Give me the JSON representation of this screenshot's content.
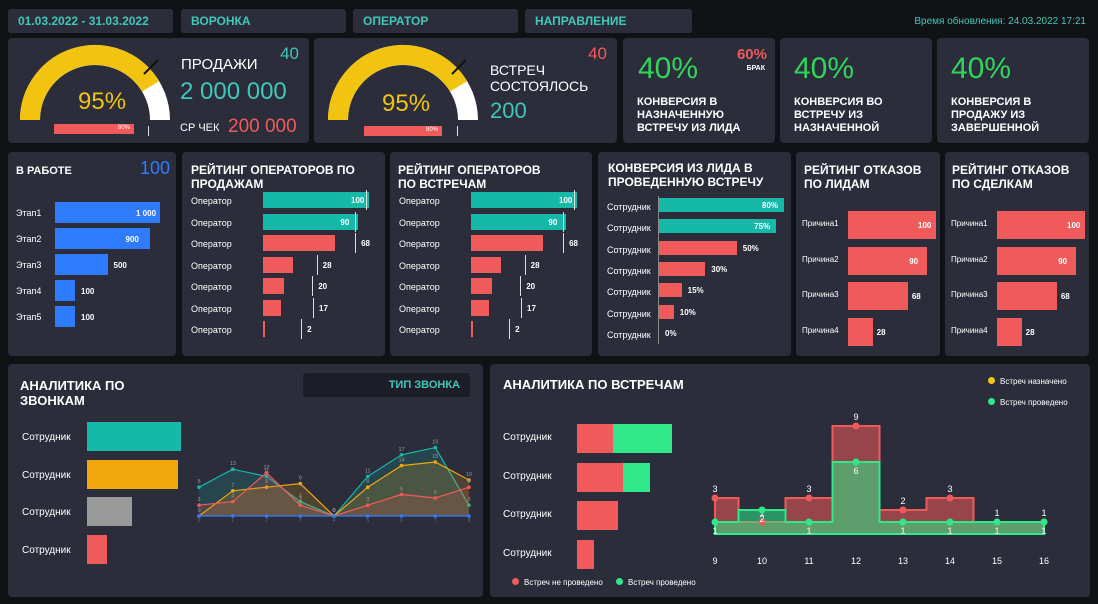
{
  "filters": {
    "date_range": "01.03.2022 - 31.03.2022",
    "funnel": "ВОРОНКА",
    "operator": "ОПЕРАТОР",
    "direction": "НАПРАВЛЕНИЕ",
    "update_time": "Время обновления: 24.03.2022 17:21"
  },
  "kpi_sales": {
    "percent": "95%",
    "title": "ПРОДАЖИ",
    "value": "2 000 000",
    "count": "40",
    "avg_label": "СР ЧЕК",
    "avg_value": "200 000",
    "bar_label": "80%",
    "level": 0.95
  },
  "kpi_meetings": {
    "percent": "95%",
    "title_1": "ВСТРЕЧ",
    "title_2": "СОСТОЯЛОСЬ",
    "value": "200",
    "count": "40",
    "bar_label": "80%",
    "level": 0.95
  },
  "conv_cards": [
    {
      "value": "40%",
      "title_1": "КОНВЕРСИЯ В",
      "title_2": "НАЗНАЧЕННУЮ",
      "title_3": "ВСТРЕЧУ ИЗ ЛИДА",
      "extra_value": "60%",
      "extra_label": "БРАК"
    },
    {
      "value": "40%",
      "title_1": "КОНВЕРСИЯ ВО",
      "title_2": "ВСТРЕЧУ ИЗ",
      "title_3": "НАЗНАЧЕННОЙ"
    },
    {
      "value": "40%",
      "title_1": "КОНВЕРСИЯ В",
      "title_2": "ПРОДАЖУ ИЗ",
      "title_3": "ЗАВЕРШЕННОЙ"
    }
  ],
  "in_work": {
    "title": "В РАБОТЕ",
    "total": "100",
    "rows": [
      {
        "label": "Этап1",
        "value": "1 000",
        "num": 1000
      },
      {
        "label": "Этап2",
        "value": "900",
        "num": 900
      },
      {
        "label": "Этап3",
        "value": "500",
        "num": 500
      },
      {
        "label": "Этап4",
        "value": "100",
        "num": 100
      },
      {
        "label": "Этап5",
        "value": "100",
        "num": 100
      }
    ]
  },
  "rating_sales": {
    "title_1": "РЕЙТИНГ ОПЕРАТОРОВ ПО",
    "title_2": "ПРОДАЖАМ",
    "rows": [
      {
        "label": "Оператор",
        "value": "100",
        "num": 100
      },
      {
        "label": "Оператор",
        "value": "90",
        "num": 90
      },
      {
        "label": "Оператор",
        "value": "68",
        "num": 68
      },
      {
        "label": "Оператор",
        "value": "28",
        "num": 28
      },
      {
        "label": "Оператор",
        "value": "20",
        "num": 20
      },
      {
        "label": "Оператор",
        "value": "17",
        "num": 17
      },
      {
        "label": "Оператор",
        "value": "2",
        "num": 2
      }
    ]
  },
  "rating_meetings": {
    "title_1": "РЕЙТИНГ ОПЕРАТОРОВ",
    "title_2": "ПО ВСТРЕЧАМ",
    "rows": [
      {
        "label": "Оператор",
        "value": "100",
        "num": 100
      },
      {
        "label": "Оператор",
        "value": "90",
        "num": 90
      },
      {
        "label": "Оператор",
        "value": "68",
        "num": 68
      },
      {
        "label": "Оператор",
        "value": "28",
        "num": 28
      },
      {
        "label": "Оператор",
        "value": "20",
        "num": 20
      },
      {
        "label": "Оператор",
        "value": "17",
        "num": 17
      },
      {
        "label": "Оператор",
        "value": "2",
        "num": 2
      }
    ]
  },
  "lead_conversion": {
    "title_1": "КОНВЕРСИЯ ИЗ ЛИДА В",
    "title_2": "ПРОВЕДЕННУЮ ВСТРЕЧУ",
    "rows": [
      {
        "label": "Сотрудник",
        "value": "80%",
        "num": 80,
        "color": "#16b8a8"
      },
      {
        "label": "Сотрудник",
        "value": "75%",
        "num": 75,
        "color": "#16b8a8"
      },
      {
        "label": "Сотрудник",
        "value": "50%",
        "num": 50,
        "color": "#f05a5a"
      },
      {
        "label": "Сотрудник",
        "value": "30%",
        "num": 30,
        "color": "#f05a5a"
      },
      {
        "label": "Сотрудник",
        "value": "15%",
        "num": 15,
        "color": "#f05a5a"
      },
      {
        "label": "Сотрудник",
        "value": "10%",
        "num": 10,
        "color": "#f05a5a"
      },
      {
        "label": "Сотрудник",
        "value": "0%",
        "num": 0,
        "color": "#f05a5a"
      }
    ]
  },
  "refusals_leads": {
    "title_1": "РЕЙТИНГ ОТКАЗОВ",
    "title_2": "ПО ЛИДАМ",
    "rows": [
      {
        "label": "Причина1",
        "value": "100",
        "num": 100
      },
      {
        "label": "Причина2",
        "value": "90",
        "num": 90
      },
      {
        "label": "Причина3",
        "value": "68",
        "num": 68
      },
      {
        "label": "Причина4",
        "value": "28",
        "num": 28
      }
    ]
  },
  "refusals_deals": {
    "title_1": "РЕЙТИНГ ОТКАЗОВ",
    "title_2": "ПО СДЕЛКАМ",
    "rows": [
      {
        "label": "Причина1",
        "value": "100",
        "num": 100
      },
      {
        "label": "Причина2",
        "value": "90",
        "num": 90
      },
      {
        "label": "Причина3",
        "value": "68",
        "num": 68
      },
      {
        "label": "Причина4",
        "value": "28",
        "num": 28
      }
    ]
  },
  "calls": {
    "title_1": "АНАЛИТИКА ПО",
    "title_2": "ЗВОНКАМ",
    "call_type": "ТИП ЗВОНКА",
    "bars": [
      {
        "label": "Сотрудник",
        "num": 100,
        "color": "#16b8a8"
      },
      {
        "label": "Сотрудник",
        "num": 97,
        "color": "#f0a80c"
      },
      {
        "label": "Сотрудник",
        "num": 48,
        "color": "#9a9a9a"
      },
      {
        "label": "Сотрудник",
        "num": 21,
        "color": "#f05a5a"
      }
    ]
  },
  "meetings_analytics": {
    "title": "АНАЛИТИКА ПО ВСТРЕЧАМ",
    "legend_top": [
      "Встреч назначено",
      "Встреч проведено"
    ],
    "legend_bottom": [
      "Встреч не проведено",
      "Встреч проведено"
    ],
    "bars": [
      {
        "label": "Сотрудник",
        "red": 36,
        "green": 59
      },
      {
        "label": "Сотрудник",
        "red": 46,
        "green": 27
      },
      {
        "label": "Сотрудник",
        "red": 41,
        "green": 0
      },
      {
        "label": "Сотрудник",
        "red": 17,
        "green": 0
      }
    ]
  },
  "chart_data": [
    {
      "type": "line",
      "x": [
        "0",
        "1",
        "2",
        "3",
        "4",
        "5",
        "6",
        "7",
        "8"
      ],
      "series": [
        {
          "color": "#16b8a8",
          "values": [
            8,
            13,
            11,
            4,
            0,
            11,
            17,
            19,
            3
          ]
        },
        {
          "color": "#f0a80c",
          "values": [
            0,
            7,
            8,
            9,
            0,
            8,
            14,
            15,
            10
          ]
        },
        {
          "color": "#f05a5a",
          "values": [
            3,
            4,
            12,
            3,
            0,
            3,
            6,
            5,
            8
          ]
        },
        {
          "color": "#2f7bff",
          "values": [
            0,
            0,
            0,
            0,
            0,
            0,
            0,
            0,
            0
          ]
        }
      ]
    },
    {
      "type": "area",
      "x": [
        "9",
        "10",
        "11",
        "12",
        "13",
        "14",
        "15",
        "16"
      ],
      "series": [
        {
          "name": "Встреч не проведено",
          "color": "#f05a5a",
          "values": [
            3,
            1,
            3,
            9,
            2,
            3,
            1,
            1
          ]
        },
        {
          "name": "Встреч проведено",
          "color": "#2ee88a",
          "values": [
            1,
            2,
            1,
            6,
            1,
            1,
            1,
            1
          ]
        }
      ]
    }
  ]
}
